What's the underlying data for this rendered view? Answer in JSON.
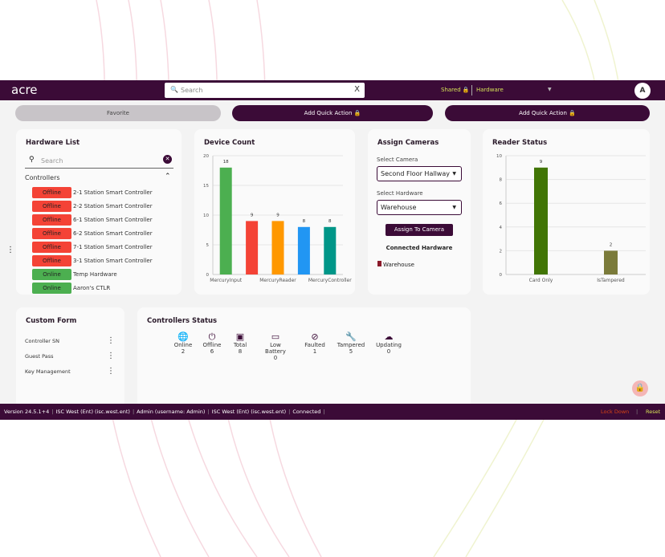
{
  "header": {
    "logo": "acre",
    "search_placeholder": "Search",
    "clear": "X",
    "shared": "Shared 🔒",
    "hardware": "Hardware",
    "avatar": "A"
  },
  "quick": {
    "favorite": "Favorite",
    "add1": "Add Quick Action 🔒",
    "add2": "Add Quick Action 🔒"
  },
  "hardware_list": {
    "title": "Hardware List",
    "search_placeholder": "Search",
    "group": "Controllers",
    "items": [
      {
        "status": "Offline",
        "name": "2-1 Station Smart Controller"
      },
      {
        "status": "Offline",
        "name": "2-2 Station Smart Controller"
      },
      {
        "status": "Offline",
        "name": "6-1 Station Smart Controller"
      },
      {
        "status": "Offline",
        "name": "6-2 Station Smart Controller"
      },
      {
        "status": "Offline",
        "name": "7-1 Station Smart Controller"
      },
      {
        "status": "Offline",
        "name": "3-1 Station Smart Controller"
      },
      {
        "status": "Online",
        "name": "Temp Hardware"
      },
      {
        "status": "Online",
        "name": "Aaron's CTLR"
      }
    ]
  },
  "colors": {
    "offline": "#f44336",
    "online": "#4caf50",
    "brand": "#3b0b37",
    "accent": "#d4e157"
  },
  "chart_data": [
    {
      "type": "bar",
      "title": "Device Count",
      "categories": [
        "MercuryInput",
        "",
        "MercuryReader",
        "",
        "MercuryController"
      ],
      "values": [
        18,
        9,
        9,
        8,
        8
      ],
      "colors": [
        "#4caf50",
        "#f44336",
        "#ff9800",
        "#2196f3",
        "#009688"
      ],
      "ylim": [
        0,
        20
      ],
      "yticks": [
        0,
        5,
        10,
        15,
        20
      ],
      "grid": true
    },
    {
      "type": "bar",
      "title": "Reader Status",
      "categories": [
        "Card Only",
        "IsTampered"
      ],
      "values": [
        9,
        2
      ],
      "colors": [
        "#417505",
        "#7b7b3a"
      ],
      "ylim": [
        0,
        10
      ],
      "yticks": [
        0,
        2,
        4,
        6,
        8,
        10
      ],
      "grid": true
    }
  ],
  "assign": {
    "title": "Assign Cameras",
    "camera_label": "Select Camera",
    "camera": "Second Floor Hallway",
    "hardware_label": "Select Hardware",
    "hardware": "Warehouse",
    "button": "Assign To Camera",
    "connected_title": "Connected Hardware",
    "connected": "Warehouse"
  },
  "custom_form": {
    "title": "Custom Form",
    "items": [
      "Controller SN",
      "Guest Pass",
      "Key Management"
    ]
  },
  "controllers_status": {
    "title": "Controllers Status",
    "stats": [
      {
        "label": "Online",
        "value": "2",
        "icon": "globe-icon"
      },
      {
        "label": "Offline",
        "value": "6",
        "icon": "power-icon"
      },
      {
        "label": "Total",
        "value": "8",
        "icon": "chip-icon"
      },
      {
        "label": "Low Battery",
        "value": "0",
        "icon": "battery-icon"
      },
      {
        "label": "Faulted",
        "value": "1",
        "icon": "ban-icon"
      },
      {
        "label": "Tampered",
        "value": "5",
        "icon": "wrench-icon"
      },
      {
        "label": "Updating",
        "value": "0",
        "icon": "cloud-upload-icon"
      }
    ]
  },
  "footer": {
    "parts": [
      "Version 24.5.1+4",
      "ISC West (Ent) (isc.west.ent)",
      "Admin (username: Admin)",
      "ISC West (Ent) (isc.west.ent)",
      "Connected"
    ],
    "lockdown": "Lock Down",
    "reset": "Reset"
  }
}
